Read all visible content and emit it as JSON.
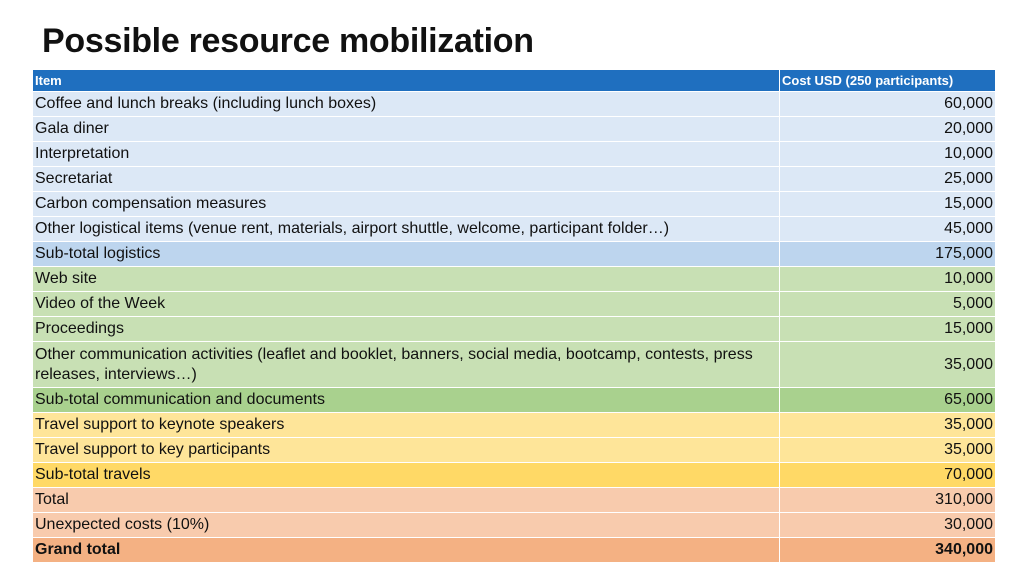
{
  "title": "Possible resource mobilization",
  "table": {
    "headers": {
      "item": "Item",
      "cost": "Cost USD (250 participants)"
    },
    "rows": [
      {
        "item": "Coffee and lunch breaks (including lunch boxes)",
        "cost": "60,000",
        "color": "#dce8f6",
        "type": "row"
      },
      {
        "item": "Gala diner",
        "cost": "20,000",
        "color": "#dce8f6",
        "type": "row"
      },
      {
        "item": "Interpretation",
        "cost": "10,000",
        "color": "#dce8f6",
        "type": "row"
      },
      {
        "item": "Secretariat",
        "cost": "25,000",
        "color": "#dce8f6",
        "type": "row"
      },
      {
        "item": "Carbon compensation measures",
        "cost": "15,000",
        "color": "#dce8f6",
        "type": "row"
      },
      {
        "item": "Other logistical items (venue rent, materials, airport shuttle, welcome, participant folder…)",
        "cost": "45,000",
        "color": "#dce8f6",
        "type": "row"
      },
      {
        "item": "Sub-total logistics",
        "cost": "175,000",
        "color": "#bdd5ee",
        "type": "subtotal"
      },
      {
        "item": "Web site",
        "cost": "10,000",
        "color": "#c8e0b4",
        "type": "row"
      },
      {
        "item": "Video of the Week",
        "cost": "5,000",
        "color": "#c8e0b4",
        "type": "row"
      },
      {
        "item": "Proceedings",
        "cost": "15,000",
        "color": "#c8e0b4",
        "type": "row"
      },
      {
        "item": "Other communication activities (leaflet and booklet, banners, social media, bootcamp, contests, press releases, interviews…)",
        "cost": "35,000",
        "color": "#c8e0b4",
        "type": "row"
      },
      {
        "item": "Sub-total communication and documents",
        "cost": "65,000",
        "color": "#a9d18e",
        "type": "subtotal"
      },
      {
        "item": "Travel support to keynote speakers",
        "cost": "35,000",
        "color": "#fee599",
        "type": "row"
      },
      {
        "item": "Travel support to key participants",
        "cost": "35,000",
        "color": "#fee599",
        "type": "row"
      },
      {
        "item": "Sub-total travels",
        "cost": "70,000",
        "color": "#ffd966",
        "type": "subtotal"
      },
      {
        "item": "Total",
        "cost": "310,000",
        "color": "#f8cbad",
        "type": "total"
      },
      {
        "item": "Unexpected costs (10%)",
        "cost": "30,000",
        "color": "#f8cbad",
        "type": "row"
      },
      {
        "item": "Grand total",
        "cost": "340,000",
        "color": "#f4b183",
        "type": "grand"
      }
    ]
  }
}
